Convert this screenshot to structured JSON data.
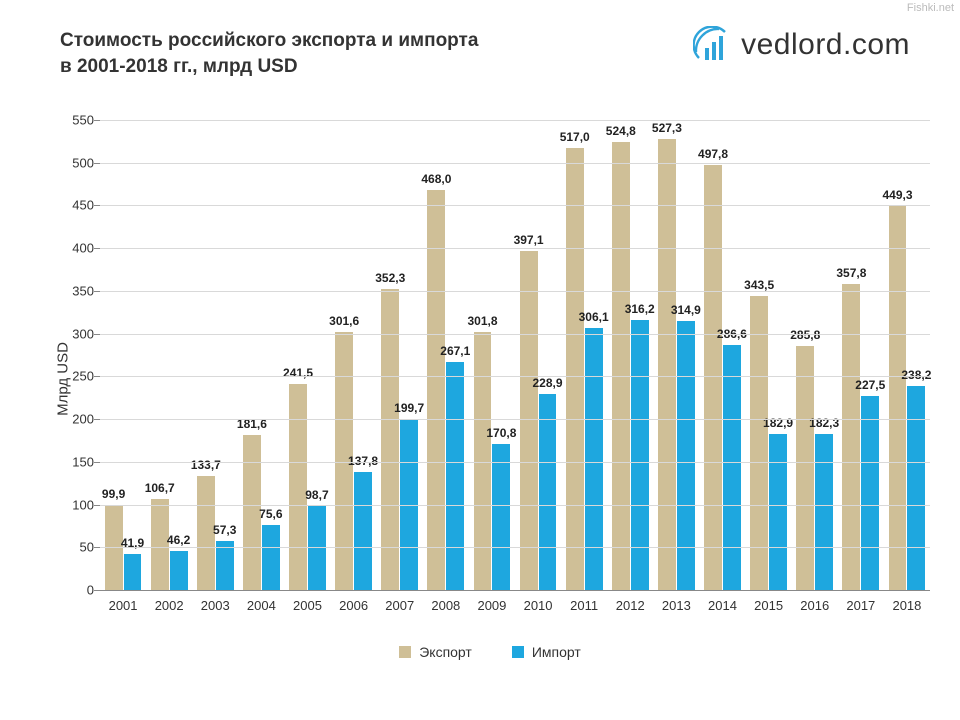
{
  "watermark": "Fishki.net",
  "brand_name": "vedlord.com",
  "brand_color": "#2fa4da",
  "title_line1": "Стоимость российского экспорта и импорта",
  "title_line2": "в 2001-2018 гг., млрд USD",
  "ylabel": "Млрд USD",
  "chart": {
    "type": "bar",
    "background_color": "#ffffff",
    "grid_color": "#d9d9d9",
    "axis_color": "#888888",
    "text_color": "#333333",
    "ylim": [
      0,
      550
    ],
    "ytick_step": 50,
    "label_fontsize": 12,
    "tick_fontsize": 13,
    "title_fontsize": 19,
    "bar_gap_ratio": 0.1,
    "inner_gap_ratio": 0.02,
    "categories": [
      "2001",
      "2002",
      "2003",
      "2004",
      "2005",
      "2006",
      "2007",
      "2008",
      "2009",
      "2010",
      "2011",
      "2012",
      "2013",
      "2014",
      "2015",
      "2016",
      "2017",
      "2018"
    ],
    "series": [
      {
        "name": "Экспорт",
        "color": "#cfbf97",
        "values": [
          99.9,
          106.7,
          133.7,
          181.6,
          241.5,
          301.6,
          352.3,
          468.0,
          301.8,
          397.1,
          517.0,
          524.8,
          527.3,
          497.8,
          343.5,
          285.8,
          357.8,
          449.3
        ],
        "labels": [
          "99,9",
          "106,7",
          "133,7",
          "181,6",
          "241,5",
          "301,6",
          "352,3",
          "468,0",
          "301,8",
          "397,1",
          "517,0",
          "524,8",
          "527,3",
          "497,8",
          "343,5",
          "285,8",
          "357,8",
          "449,3"
        ]
      },
      {
        "name": "Импорт",
        "color": "#1ea7df",
        "values": [
          41.9,
          46.2,
          57.3,
          75.6,
          98.7,
          137.8,
          199.7,
          267.1,
          170.8,
          228.9,
          306.1,
          316.2,
          314.9,
          286.6,
          182.9,
          182.3,
          227.5,
          238.2
        ],
        "labels": [
          "41,9",
          "46,2",
          "57,3",
          "75,6",
          "98,7",
          "137,8",
          "199,7",
          "267,1",
          "170,8",
          "228,9",
          "306,1",
          "316,2",
          "314,9",
          "286,6",
          "182,9",
          "182,3",
          "227,5",
          "238,2"
        ]
      }
    ]
  }
}
